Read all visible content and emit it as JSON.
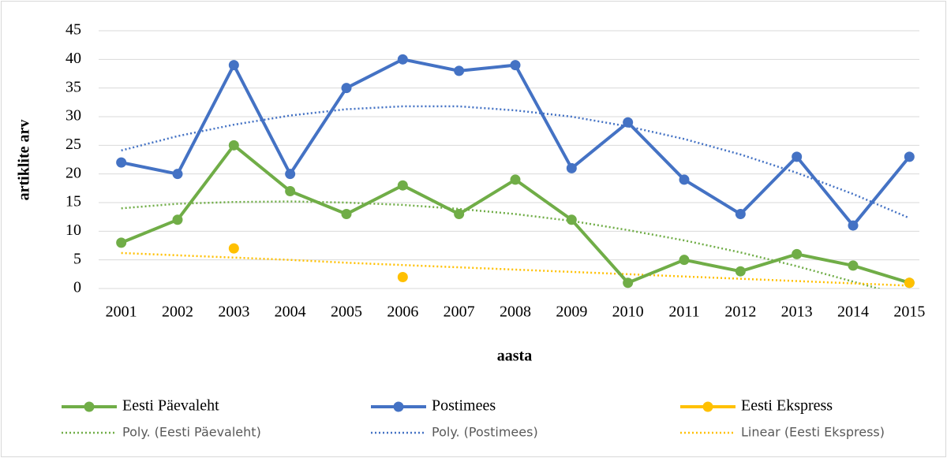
{
  "chart_data": {
    "type": "line",
    "ylabel": "artiklite arv",
    "xlabel": "aasta",
    "categories": [
      "2001",
      "2002",
      "2003",
      "2004",
      "2005",
      "2006",
      "2007",
      "2008",
      "2009",
      "2010",
      "2011",
      "2012",
      "2013",
      "2014",
      "2015"
    ],
    "ylim": [
      0,
      45
    ],
    "yticks": [
      0,
      5,
      10,
      15,
      20,
      25,
      30,
      35,
      40,
      45
    ],
    "grid": true,
    "legend": "bottom",
    "series": [
      {
        "name": "Eesti Päevaleht",
        "color": "#70ad47",
        "style": "solid",
        "marker": true,
        "values": [
          8,
          12,
          25,
          17,
          13,
          18,
          13,
          19,
          12,
          1,
          5,
          3,
          6,
          4,
          1
        ]
      },
      {
        "name": "Postimees",
        "color": "#4472c4",
        "style": "solid",
        "marker": true,
        "values": [
          22,
          20,
          39,
          20,
          35,
          40,
          38,
          39,
          21,
          29,
          19,
          13,
          23,
          11,
          23
        ]
      },
      {
        "name": "Eesti Ekspress",
        "color": "#ffc000",
        "style": "solid",
        "marker": true,
        "values": [
          null,
          null,
          7,
          null,
          null,
          2,
          null,
          null,
          null,
          null,
          null,
          null,
          null,
          null,
          1
        ]
      },
      {
        "name": "Poly. (Eesti Päevaleht)",
        "color": "#70ad47",
        "style": "dotted",
        "marker": false,
        "values": [
          14,
          14.8,
          15.1,
          15.2,
          15,
          14.6,
          13.9,
          13,
          11.8,
          10.2,
          8.4,
          6.3,
          3.9,
          1.2,
          -1.5
        ]
      },
      {
        "name": "Poly. (Postimees)",
        "color": "#4472c4",
        "style": "dotted",
        "marker": false,
        "values": [
          24.1,
          26.6,
          28.6,
          30.2,
          31.3,
          31.8,
          31.8,
          31.1,
          30,
          28.3,
          26.1,
          23.4,
          20.2,
          16.5,
          12.3
        ]
      },
      {
        "name": "Linear (Eesti Ekspress)",
        "color": "#ffc000",
        "style": "dotted",
        "marker": false,
        "values": [
          6.2,
          5.8,
          5.4,
          5,
          4.5,
          4.1,
          3.7,
          3.3,
          2.9,
          2.5,
          2.1,
          1.7,
          1.3,
          0.9,
          0.5
        ]
      }
    ]
  }
}
